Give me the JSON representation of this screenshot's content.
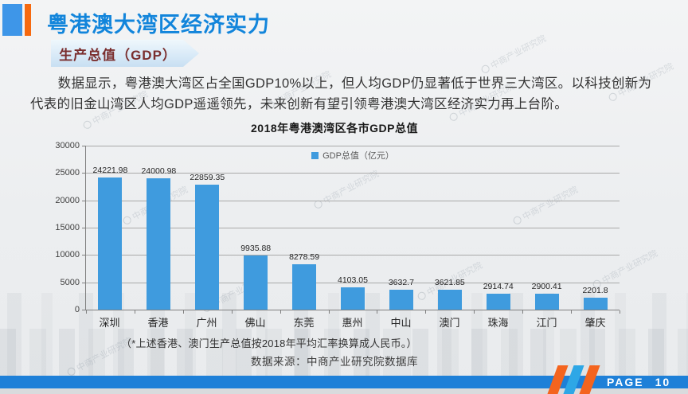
{
  "slide": {
    "title": "粤港澳大湾区经济实力",
    "section_banner": "生产总值（GDP）",
    "paragraph": "数据显示，粤港澳大湾区占全国GDP10%以上，但人均GDP仍显著低于世界三大湾区。以科技创新为代表的旧金山湾区人均GDP遥遥领先，未来创新有望引领粤港澳大湾区经济实力再上台阶。",
    "note": "（*上述香港、澳门生产总值按2018年平均汇率换算成人民币。）",
    "source": "数据来源：中商产业研究院数据库",
    "page_label": "PAGE",
    "page_number": "10",
    "watermark_text": "中商产业研究院"
  },
  "colors": {
    "title_blue": "#1285DB",
    "header_square_blue": "#3E96E8",
    "header_bar_orange": "#F6690F",
    "banner_fill": "#D7E9F7",
    "banner_text": "#7A2E2E",
    "bar_fill": "#3F9BDE",
    "footer_bar_blue": "#1E80D8",
    "stripe_orange": "#F4641E",
    "stripe_blue": "#2EA7E6"
  },
  "chart_data": {
    "type": "bar",
    "title": "2018年粤港澳湾区各市GDP总值",
    "legend": "GDP总值（亿元）",
    "legend_position": "top-center",
    "categories": [
      "深圳",
      "香港",
      "广州",
      "佛山",
      "东莞",
      "惠州",
      "中山",
      "澳门",
      "珠海",
      "江门",
      "肇庆"
    ],
    "values": [
      24221.98,
      24000.98,
      22859.35,
      9935.88,
      8278.59,
      4103.05,
      3632.7,
      3621.85,
      2914.74,
      2900.41,
      2201.8
    ],
    "value_labels": [
      "24221.98",
      "24000.98",
      "22859.35",
      "9935.88",
      "8278.59",
      "4103.05",
      "3632.7",
      "3621.85",
      "2914.74",
      "2900.41",
      "2201.8"
    ],
    "xlabel": "",
    "ylabel": "",
    "ylim": [
      0,
      30000
    ],
    "ytick_interval": 5000,
    "yticks": [
      "0",
      "5000",
      "10000",
      "15000",
      "20000",
      "25000",
      "30000"
    ],
    "grid": true,
    "bar_color": "#3F9BDE"
  }
}
